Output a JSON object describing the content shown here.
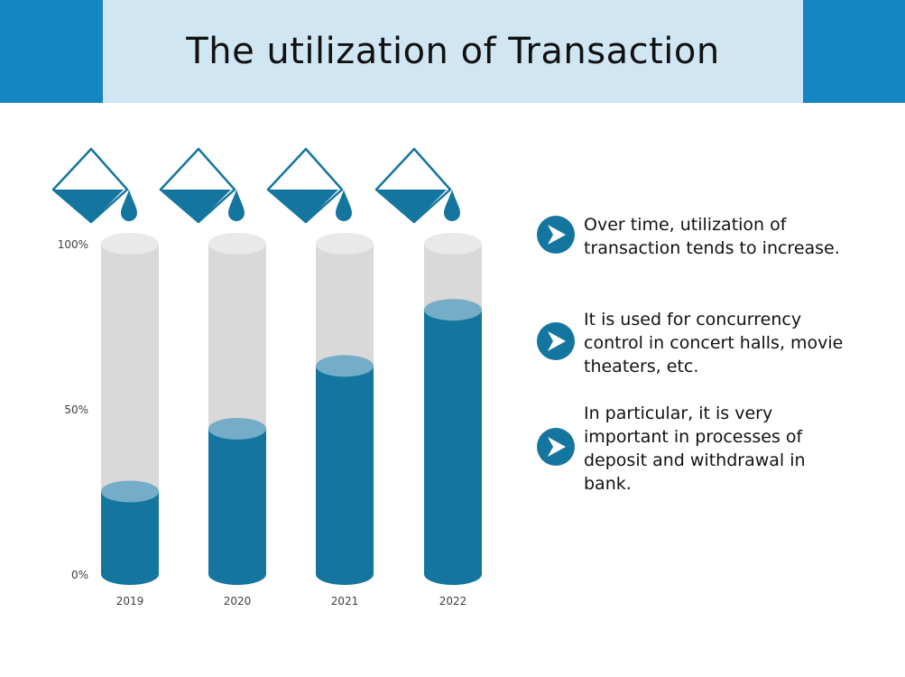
{
  "title": "The utilization of Transaction",
  "colors": {
    "header_dark": "#1486c0",
    "header_light": "#d0e7f3",
    "fill": "#14769f",
    "fill_top": "#75adc8",
    "empty": "#d9d9d9",
    "empty_top": "#e9e9e9",
    "icon": "#14769f"
  },
  "chart_data": {
    "type": "bar",
    "categories": [
      "2019",
      "2020",
      "2021",
      "2022"
    ],
    "series": [
      {
        "values": [
          25,
          44,
          63,
          80
        ]
      }
    ],
    "ylim": [
      0,
      100
    ],
    "yticks": [
      {
        "value": 0,
        "label": "0%"
      },
      {
        "value": 50,
        "label": "50%"
      },
      {
        "value": 100,
        "label": "100%"
      }
    ],
    "xlabel": "",
    "ylabel": "",
    "title": "",
    "grid": false,
    "style": "cylinder",
    "decorations": "pouring-beaker-icon"
  },
  "bullets": [
    {
      "icon": "chevron-right-icon",
      "text": "Over time, utilization of transaction tends to increase."
    },
    {
      "icon": "chevron-right-icon",
      "text": "It is used for concurrency control in concert halls, movie theaters, etc."
    },
    {
      "icon": "chevron-right-icon",
      "text": "In particular, it is very important in processes of deposit and withdrawal in bank."
    }
  ]
}
